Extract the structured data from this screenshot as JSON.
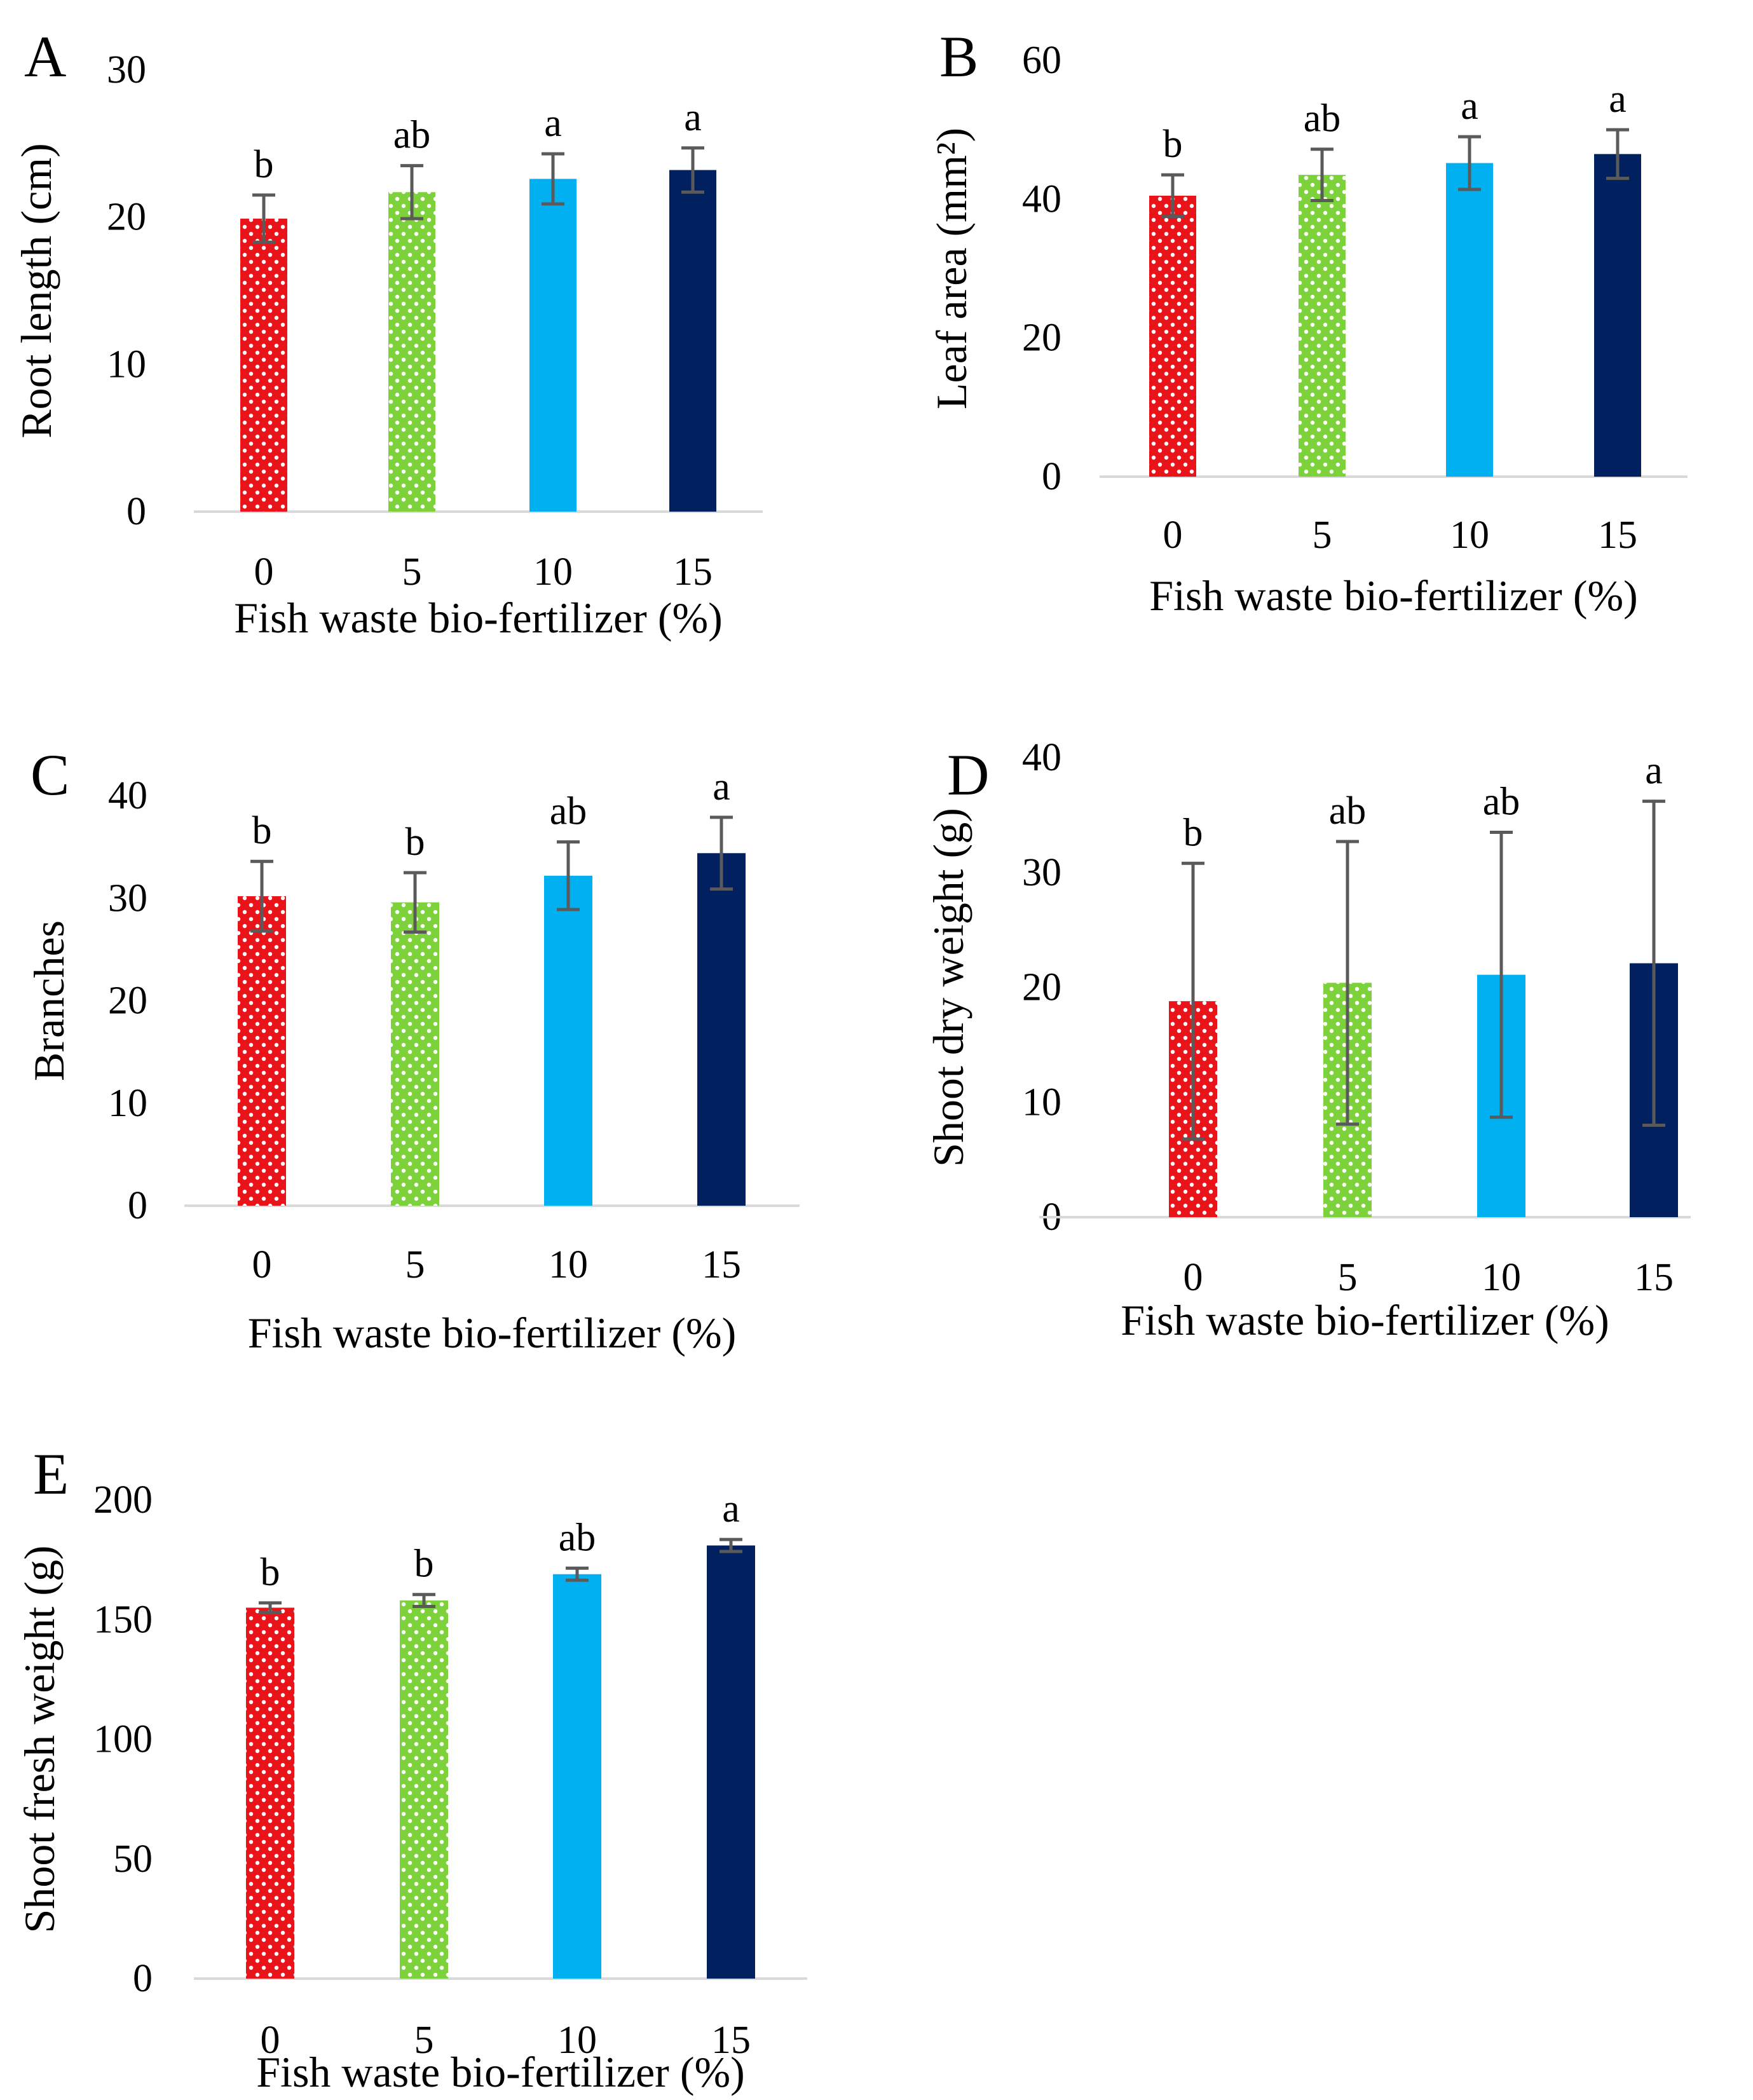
{
  "figure": {
    "colors": {
      "bar_0": "#e8141a",
      "bar_5": "#7dd13a",
      "bar_10": "#00b0f0",
      "bar_15": "#002060",
      "error_bar": "#5a5a5a",
      "axis_line": "#d9d9d9"
    }
  },
  "chart_data": [
    {
      "panel": "A",
      "type": "bar",
      "categories": [
        "0",
        "5",
        "10",
        "15"
      ],
      "values": [
        19.9,
        21.7,
        22.6,
        23.2
      ],
      "errors": [
        1.6,
        1.8,
        1.7,
        1.5
      ],
      "significance": [
        "b",
        "ab",
        "a",
        "a"
      ],
      "xlabel": "Fish waste bio-fertilizer (%)",
      "ylabel": "Root length (cm)",
      "ylim": [
        0,
        30
      ],
      "yticks": [
        "0",
        "10",
        "20",
        "30"
      ]
    },
    {
      "panel": "B",
      "type": "bar",
      "categories": [
        "0",
        "5",
        "10",
        "15"
      ],
      "values": [
        40.5,
        43.5,
        45.2,
        46.5
      ],
      "errors": [
        3.0,
        3.7,
        3.8,
        3.5
      ],
      "significance": [
        "b",
        "ab",
        "a",
        "a"
      ],
      "xlabel": "Fish waste bio-fertilizer (%)",
      "ylabel": "Leaf area (mm²)",
      "ylim": [
        0,
        60
      ],
      "yticks": [
        "0",
        "20",
        "40",
        "60"
      ]
    },
    {
      "panel": "C",
      "type": "bar",
      "categories": [
        "0",
        "5",
        "10",
        "15"
      ],
      "values": [
        30.2,
        29.6,
        32.2,
        34.4
      ],
      "errors": [
        3.4,
        2.9,
        3.3,
        3.5
      ],
      "significance": [
        "b",
        "b",
        "ab",
        "a"
      ],
      "xlabel": "Fish waste bio-fertilizer (%)",
      "ylabel": "Branches",
      "ylim": [
        0,
        40
      ],
      "yticks": [
        "0",
        "10",
        "20",
        "30",
        "40"
      ]
    },
    {
      "panel": "D",
      "type": "bar",
      "categories": [
        "0",
        "5",
        "10",
        "15"
      ],
      "values": [
        18.8,
        20.4,
        21.1,
        22.1
      ],
      "errors": [
        12.0,
        12.3,
        12.4,
        14.1
      ],
      "significance": [
        "b",
        "ab",
        "ab",
        "a"
      ],
      "xlabel": "Fish waste bio-fertilizer (%)",
      "ylabel": "Shoot dry weight (g)",
      "ylim": [
        0,
        40
      ],
      "yticks": [
        "0",
        "10",
        "20",
        "30",
        "40"
      ]
    },
    {
      "panel": "E",
      "type": "bar",
      "categories": [
        "0",
        "5",
        "10",
        "15"
      ],
      "values": [
        155,
        158,
        169,
        181
      ],
      "errors": [
        2.0,
        2.5,
        2.5,
        2.5
      ],
      "significance": [
        "b",
        "b",
        "ab",
        "a"
      ],
      "xlabel": "Fish waste bio-fertilizer (%)",
      "ylabel": "Shoot fresh weight (g)",
      "ylim": [
        0,
        200
      ],
      "yticks": [
        "0",
        "50",
        "100",
        "150",
        "200"
      ]
    }
  ]
}
